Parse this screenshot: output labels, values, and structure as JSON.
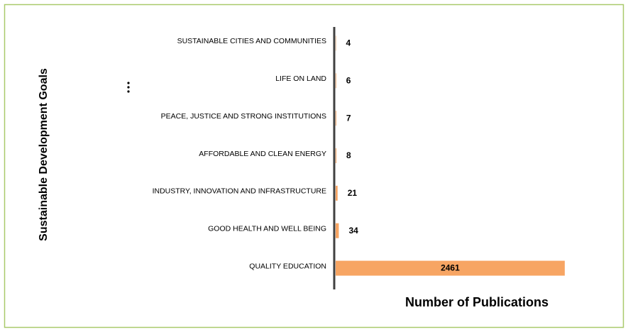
{
  "chart_data": {
    "type": "hbar",
    "categories": [
      "SUSTAINABLE CITIES AND COMMUNITIES",
      "LIFE ON LAND",
      "PEACE, JUSTICE AND STRONG INSTITUTIONS",
      "AFFORDABLE AND CLEAN ENERGY",
      "INDUSTRY, INNOVATION AND INFRASTRUCTURE",
      "GOOD HEALTH AND WELL BEING",
      "QUALITY EDUCATION"
    ],
    "values": [
      4,
      6,
      7,
      8,
      21,
      34,
      2461
    ],
    "color": "#f7a563",
    "xlim": [
      0,
      2500
    ],
    "x_label": "Number of Publications",
    "y_label": "Sustainable Development Goals"
  }
}
